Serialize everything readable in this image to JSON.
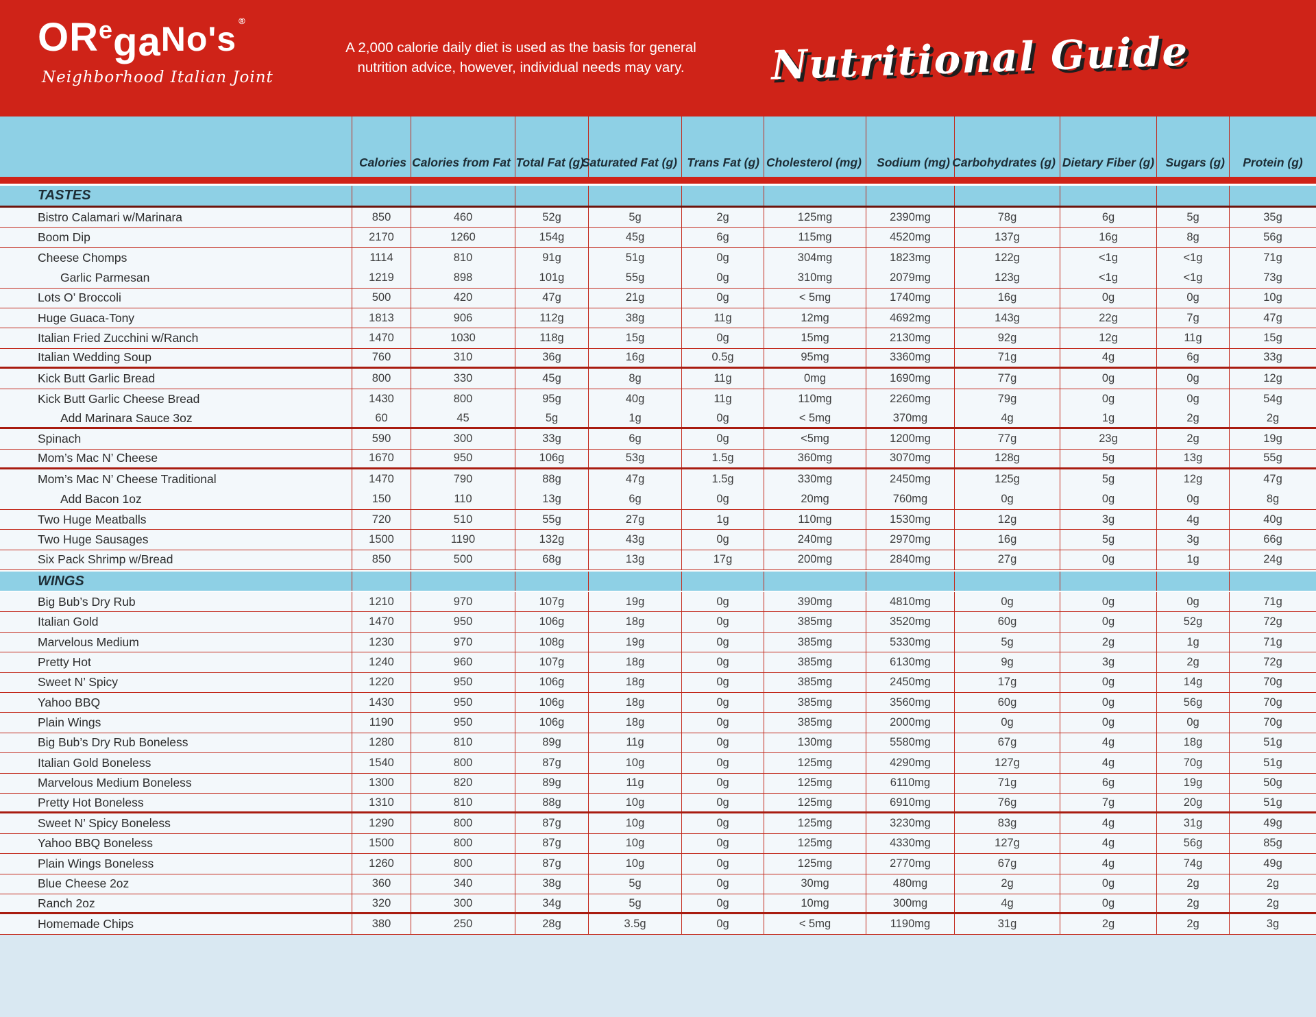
{
  "header": {
    "logo": {
      "part_or": "OR",
      "part_e": "e",
      "part_ga": "ga",
      "part_nos": "No's",
      "reg": "®",
      "tagline": "Neighborhood Italian Joint"
    },
    "disclaimer_line1": "A 2,000 calorie daily diet is used as the basis for general",
    "disclaimer_line2": "nutrition advice, however, individual needs may vary.",
    "title": "Nutritional Guide"
  },
  "colors": {
    "brand_red": "#cf2318",
    "panel_blue": "#8ed0e5",
    "line_red": "#c2281a",
    "thick_line_red": "#a81c10",
    "row_bg": "#f3f8fb",
    "footer_blue": "#d9e8f2"
  },
  "table": {
    "columns": [
      "Calories",
      "Calories from Fat",
      "Total Fat (g)",
      "Saturated Fat (g)",
      "Trans Fat (g)",
      "Cholesterol (mg)",
      "Sodium (mg)",
      "Carbohydrates (g)",
      "Dietary Fiber (g)",
      "Sugars (g)",
      "Protein (g)"
    ],
    "sections": [
      {
        "name": "TASTES",
        "rows": [
          {
            "item": "Bistro Calamari w/Marinara",
            "indent": false,
            "border": "thin",
            "values": [
              "850",
              "460",
              "52g",
              "5g",
              "2g",
              "125mg",
              "2390mg",
              "78g",
              "6g",
              "5g",
              "35g"
            ]
          },
          {
            "item": "Boom Dip",
            "indent": false,
            "border": "thin",
            "values": [
              "2170",
              "1260",
              "154g",
              "45g",
              "6g",
              "115mg",
              "4520mg",
              "137g",
              "16g",
              "8g",
              "56g"
            ]
          },
          {
            "item": "Cheese Chomps",
            "indent": false,
            "border": "none",
            "values": [
              "1114",
              "810",
              "91g",
              "51g",
              "0g",
              "304mg",
              "1823mg",
              "122g",
              "<1g",
              "<1g",
              "71g"
            ]
          },
          {
            "item": "Garlic Parmesan",
            "indent": true,
            "border": "thin",
            "values": [
              "1219",
              "898",
              "101g",
              "55g",
              "0g",
              "310mg",
              "2079mg",
              "123g",
              "<1g",
              "<1g",
              "73g"
            ]
          },
          {
            "item": "Lots O’ Broccoli",
            "indent": false,
            "border": "thin",
            "values": [
              "500",
              "420",
              "47g",
              "21g",
              "0g",
              "< 5mg",
              "1740mg",
              "16g",
              "0g",
              "0g",
              "10g"
            ]
          },
          {
            "item": "Huge Guaca-Tony",
            "indent": false,
            "border": "thin",
            "values": [
              "1813",
              "906",
              "112g",
              "38g",
              "11g",
              "12mg",
              "4692mg",
              "143g",
              "22g",
              "7g",
              "47g"
            ]
          },
          {
            "item": "Italian Fried Zucchini w/Ranch",
            "indent": false,
            "border": "thin",
            "values": [
              "1470",
              "1030",
              "118g",
              "15g",
              "0g",
              "15mg",
              "2130mg",
              "92g",
              "12g",
              "11g",
              "15g"
            ]
          },
          {
            "item": "Italian Wedding Soup",
            "indent": false,
            "border": "thick",
            "values": [
              "760",
              "310",
              "36g",
              "16g",
              "0.5g",
              "95mg",
              "3360mg",
              "71g",
              "4g",
              "6g",
              "33g"
            ]
          },
          {
            "item": "Kick Butt Garlic Bread",
            "indent": false,
            "border": "thin",
            "values": [
              "800",
              "330",
              "45g",
              "8g",
              "11g",
              "0mg",
              "1690mg",
              "77g",
              "0g",
              "0g",
              "12g"
            ]
          },
          {
            "item": "Kick Butt Garlic Cheese Bread",
            "indent": false,
            "border": "none",
            "values": [
              "1430",
              "800",
              "95g",
              "40g",
              "11g",
              "110mg",
              "2260mg",
              "79g",
              "0g",
              "0g",
              "54g"
            ]
          },
          {
            "item": "Add Marinara Sauce 3oz",
            "indent": true,
            "border": "thick",
            "values": [
              "60",
              "45",
              "5g",
              "1g",
              "0g",
              "< 5mg",
              "370mg",
              "4g",
              "1g",
              "2g",
              "2g"
            ]
          },
          {
            "item": "Spinach",
            "indent": false,
            "border": "thin",
            "values": [
              "590",
              "300",
              "33g",
              "6g",
              "0g",
              "<5mg",
              "1200mg",
              "77g",
              "23g",
              "2g",
              "19g"
            ]
          },
          {
            "item": "Mom’s Mac N’ Cheese",
            "indent": false,
            "border": "thick",
            "values": [
              "1670",
              "950",
              "106g",
              "53g",
              "1.5g",
              "360mg",
              "3070mg",
              "128g",
              "5g",
              "13g",
              "55g"
            ]
          },
          {
            "item": "Mom’s Mac N’ Cheese Traditional",
            "indent": false,
            "border": "none",
            "values": [
              "1470",
              "790",
              "88g",
              "47g",
              "1.5g",
              "330mg",
              "2450mg",
              "125g",
              "5g",
              "12g",
              "47g"
            ]
          },
          {
            "item": "Add Bacon 1oz",
            "indent": true,
            "border": "thin",
            "values": [
              "150",
              "110",
              "13g",
              "6g",
              "0g",
              "20mg",
              "760mg",
              "0g",
              "0g",
              "0g",
              "8g"
            ]
          },
          {
            "item": "Two Huge Meatballs",
            "indent": false,
            "border": "thin",
            "values": [
              "720",
              "510",
              "55g",
              "27g",
              "1g",
              "110mg",
              "1530mg",
              "12g",
              "3g",
              "4g",
              "40g"
            ]
          },
          {
            "item": "Two Huge Sausages",
            "indent": false,
            "border": "thin",
            "values": [
              "1500",
              "1190",
              "132g",
              "43g",
              "0g",
              "240mg",
              "2970mg",
              "16g",
              "5g",
              "3g",
              "66g"
            ]
          },
          {
            "item": "Six Pack Shrimp w/Bread",
            "indent": false,
            "border": "thin",
            "values": [
              "850",
              "500",
              "68g",
              "13g",
              "17g",
              "200mg",
              "2840mg",
              "27g",
              "0g",
              "1g",
              "24g"
            ]
          }
        ]
      },
      {
        "name": "WINGS",
        "rows": [
          {
            "item": "Big Bub’s Dry Rub",
            "indent": false,
            "border": "thin",
            "values": [
              "1210",
              "970",
              "107g",
              "19g",
              "0g",
              "390mg",
              "4810mg",
              "0g",
              "0g",
              "0g",
              "71g"
            ]
          },
          {
            "item": "Italian Gold",
            "indent": false,
            "border": "thin",
            "values": [
              "1470",
              "950",
              "106g",
              "18g",
              "0g",
              "385mg",
              "3520mg",
              "60g",
              "0g",
              "52g",
              "72g"
            ]
          },
          {
            "item": "Marvelous Medium",
            "indent": false,
            "border": "thin",
            "values": [
              "1230",
              "970",
              "108g",
              "19g",
              "0g",
              "385mg",
              "5330mg",
              "5g",
              "2g",
              "1g",
              "71g"
            ]
          },
          {
            "item": "Pretty Hot",
            "indent": false,
            "border": "thin",
            "values": [
              "1240",
              "960",
              "107g",
              "18g",
              "0g",
              "385mg",
              "6130mg",
              "9g",
              "3g",
              "2g",
              "72g"
            ]
          },
          {
            "item": "Sweet N’ Spicy",
            "indent": false,
            "border": "thin",
            "values": [
              "1220",
              "950",
              "106g",
              "18g",
              "0g",
              "385mg",
              "2450mg",
              "17g",
              "0g",
              "14g",
              "70g"
            ]
          },
          {
            "item": "Yahoo BBQ",
            "indent": false,
            "border": "thin",
            "values": [
              "1430",
              "950",
              "106g",
              "18g",
              "0g",
              "385mg",
              "3560mg",
              "60g",
              "0g",
              "56g",
              "70g"
            ]
          },
          {
            "item": "Plain Wings",
            "indent": false,
            "border": "thin",
            "values": [
              "1190",
              "950",
              "106g",
              "18g",
              "0g",
              "385mg",
              "2000mg",
              "0g",
              "0g",
              "0g",
              "70g"
            ]
          },
          {
            "item": "Big Bub’s Dry Rub Boneless",
            "indent": false,
            "border": "thin",
            "values": [
              "1280",
              "810",
              "89g",
              "11g",
              "0g",
              "130mg",
              "5580mg",
              "67g",
              "4g",
              "18g",
              "51g"
            ]
          },
          {
            "item": "Italian Gold Boneless",
            "indent": false,
            "border": "thin",
            "values": [
              "1540",
              "800",
              "87g",
              "10g",
              "0g",
              "125mg",
              "4290mg",
              "127g",
              "4g",
              "70g",
              "51g"
            ]
          },
          {
            "item": "Marvelous Medium Boneless",
            "indent": false,
            "border": "thin",
            "values": [
              "1300",
              "820",
              "89g",
              "11g",
              "0g",
              "125mg",
              "6110mg",
              "71g",
              "6g",
              "19g",
              "50g"
            ]
          },
          {
            "item": "Pretty Hot Boneless",
            "indent": false,
            "border": "thick",
            "values": [
              "1310",
              "810",
              "88g",
              "10g",
              "0g",
              "125mg",
              "6910mg",
              "76g",
              "7g",
              "20g",
              "51g"
            ]
          },
          {
            "item": "Sweet N’ Spicy Boneless",
            "indent": false,
            "border": "thin",
            "values": [
              "1290",
              "800",
              "87g",
              "10g",
              "0g",
              "125mg",
              "3230mg",
              "83g",
              "4g",
              "31g",
              "49g"
            ]
          },
          {
            "item": "Yahoo BBQ Boneless",
            "indent": false,
            "border": "thin",
            "values": [
              "1500",
              "800",
              "87g",
              "10g",
              "0g",
              "125mg",
              "4330mg",
              "127g",
              "4g",
              "56g",
              "85g"
            ]
          },
          {
            "item": "Plain Wings Boneless",
            "indent": false,
            "border": "thin",
            "values": [
              "1260",
              "800",
              "87g",
              "10g",
              "0g",
              "125mg",
              "2770mg",
              "67g",
              "4g",
              "74g",
              "49g"
            ]
          },
          {
            "item": "Blue Cheese 2oz",
            "indent": false,
            "border": "thin",
            "values": [
              "360",
              "340",
              "38g",
              "5g",
              "0g",
              "30mg",
              "480mg",
              "2g",
              "0g",
              "2g",
              "2g"
            ]
          },
          {
            "item": "Ranch 2oz",
            "indent": false,
            "border": "thick",
            "values": [
              "320",
              "300",
              "34g",
              "5g",
              "0g",
              "10mg",
              "300mg",
              "4g",
              "0g",
              "2g",
              "2g"
            ]
          },
          {
            "item": "Homemade Chips",
            "indent": false,
            "border": "thin",
            "values": [
              "380",
              "250",
              "28g",
              "3.5g",
              "0g",
              "< 5mg",
              "1190mg",
              "31g",
              "2g",
              "2g",
              "3g"
            ]
          }
        ]
      }
    ]
  }
}
